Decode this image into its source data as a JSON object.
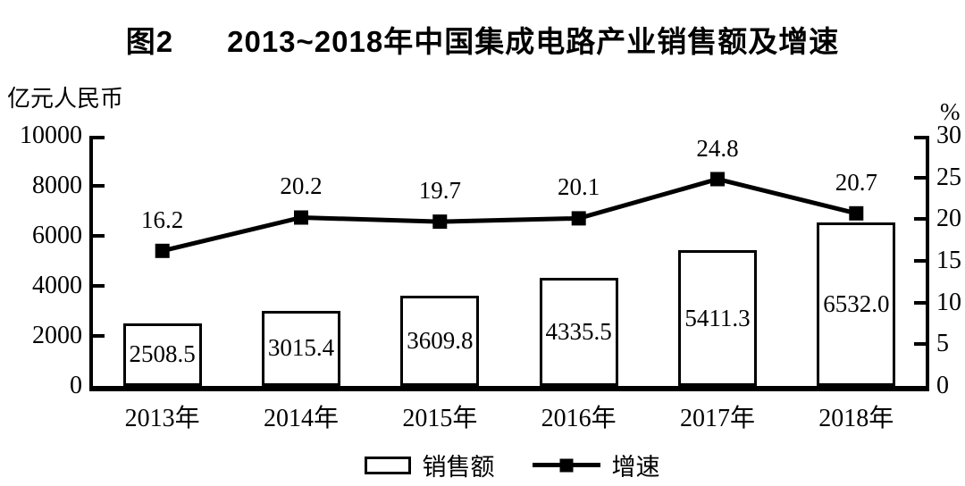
{
  "figure": {
    "title_prefix": "图2",
    "title": "2013~2018年中国集成电路产业销售额及增速",
    "left_axis_unit": "亿元人民币",
    "right_axis_unit": "%"
  },
  "chart_data": {
    "type": "bar",
    "subtype": "bar-line-combo",
    "title": "图2 2013~2018年中国集成电路产业销售额及增速",
    "categories": [
      "2013年",
      "2014年",
      "2015年",
      "2016年",
      "2017年",
      "2018年"
    ],
    "series": [
      {
        "name": "销售额",
        "type": "bar",
        "axis": "left",
        "values": [
          2508.5,
          3015.4,
          3609.8,
          4335.5,
          5411.3,
          6532.0
        ],
        "labels": [
          "2508.5",
          "3015.4",
          "3609.8",
          "4335.5",
          "5411.3",
          "6532.0"
        ]
      },
      {
        "name": "增速",
        "type": "line",
        "axis": "right",
        "values": [
          16.2,
          20.2,
          19.7,
          20.1,
          24.8,
          20.7
        ],
        "labels": [
          "16.2",
          "20.2",
          "19.7",
          "20.1",
          "24.8",
          "20.7"
        ]
      }
    ],
    "left_axis": {
      "unit": "亿元人民币",
      "min": 0,
      "max": 10000,
      "ticks": [
        0,
        2000,
        4000,
        6000,
        8000,
        10000
      ]
    },
    "right_axis": {
      "unit": "%",
      "min": 0,
      "max": 30,
      "ticks": [
        0,
        5,
        10,
        15,
        20,
        25,
        30
      ]
    },
    "legend": {
      "position": "bottom",
      "entries": [
        "销售额",
        "增速"
      ]
    },
    "grid": false,
    "colors": {
      "foreground": "#000000",
      "background": "#ffffff",
      "bar_fill": "#ffffff",
      "line": "#000000"
    }
  }
}
